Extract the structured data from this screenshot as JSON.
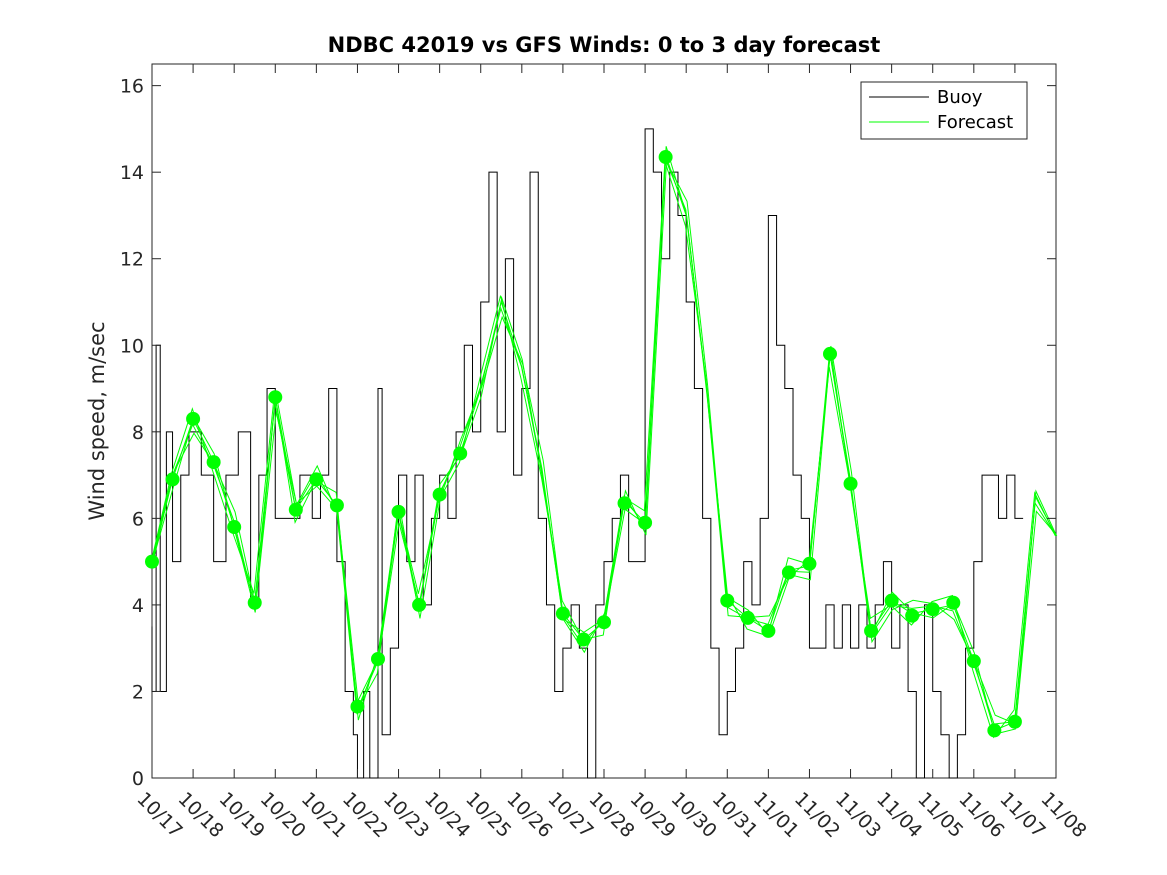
{
  "chart_data": {
    "type": "line",
    "title": "NDBC 42019 vs GFS Winds: 0 to 3 day forecast",
    "xlabel": "",
    "ylabel": "Wind speed, m/sec",
    "xlim": [
      0,
      22
    ],
    "ylim": [
      0,
      16.5
    ],
    "x_ticks": [
      "10/17",
      "10/18",
      "10/19",
      "10/20",
      "10/21",
      "10/22",
      "10/23",
      "10/24",
      "10/25",
      "10/26",
      "10/27",
      "10/28",
      "10/29",
      "10/30",
      "10/31",
      "11/01",
      "11/02",
      "11/03",
      "11/04",
      "11/05",
      "11/06",
      "11/07",
      "11/08"
    ],
    "y_ticks": [
      0,
      2,
      4,
      6,
      8,
      10,
      12,
      14,
      16
    ],
    "grid": false,
    "legend": {
      "position": "top-right",
      "entries": [
        "Buoy",
        "Forecast"
      ]
    },
    "series": [
      {
        "name": "Buoy",
        "color": "#000000",
        "points": [
          [
            0,
            3.5
          ],
          [
            0.1,
            2
          ],
          [
            0.2,
            10
          ],
          [
            0.35,
            2
          ],
          [
            0.5,
            8
          ],
          [
            0.7,
            5
          ],
          [
            0.9,
            7
          ],
          [
            1.2,
            8
          ],
          [
            1.5,
            7
          ],
          [
            1.8,
            5
          ],
          [
            2.1,
            7
          ],
          [
            2.4,
            8
          ],
          [
            2.6,
            4
          ],
          [
            2.8,
            7
          ],
          [
            3.0,
            9
          ],
          [
            3.3,
            6
          ],
          [
            3.6,
            6
          ],
          [
            3.9,
            7
          ],
          [
            4.1,
            6
          ],
          [
            4.3,
            7
          ],
          [
            4.5,
            9
          ],
          [
            4.7,
            5
          ],
          [
            4.9,
            2
          ],
          [
            5.0,
            1
          ],
          [
            5.15,
            0
          ],
          [
            5.3,
            2
          ],
          [
            5.5,
            0
          ],
          [
            5.6,
            9
          ],
          [
            5.8,
            1
          ],
          [
            6.0,
            3
          ],
          [
            6.2,
            7
          ],
          [
            6.4,
            5
          ],
          [
            6.6,
            7
          ],
          [
            6.8,
            4
          ],
          [
            7.0,
            6
          ],
          [
            7.2,
            7
          ],
          [
            7.4,
            6
          ],
          [
            7.6,
            8
          ],
          [
            7.8,
            10
          ],
          [
            8.0,
            8
          ],
          [
            8.2,
            11
          ],
          [
            8.4,
            14
          ],
          [
            8.6,
            8
          ],
          [
            8.8,
            12
          ],
          [
            9.0,
            7
          ],
          [
            9.2,
            9
          ],
          [
            9.4,
            14
          ],
          [
            9.6,
            6
          ],
          [
            9.8,
            4
          ],
          [
            10.0,
            2
          ],
          [
            10.2,
            3
          ],
          [
            10.4,
            4
          ],
          [
            10.6,
            3
          ],
          [
            10.8,
            0
          ],
          [
            11.0,
            4
          ],
          [
            11.2,
            5
          ],
          [
            11.4,
            6
          ],
          [
            11.6,
            7
          ],
          [
            11.8,
            5
          ],
          [
            12.0,
            5
          ],
          [
            12.2,
            15
          ],
          [
            12.4,
            14
          ],
          [
            12.6,
            12
          ],
          [
            12.8,
            14
          ],
          [
            13.0,
            13
          ],
          [
            13.2,
            11
          ],
          [
            13.4,
            9
          ],
          [
            13.6,
            6
          ],
          [
            13.8,
            3
          ],
          [
            14.0,
            1
          ],
          [
            14.2,
            2
          ],
          [
            14.4,
            3
          ],
          [
            14.6,
            5
          ],
          [
            14.8,
            4
          ],
          [
            15.0,
            6
          ],
          [
            15.2,
            13
          ],
          [
            15.4,
            10
          ],
          [
            15.6,
            9
          ],
          [
            15.8,
            7
          ],
          [
            16.0,
            6
          ],
          [
            16.2,
            3
          ],
          [
            16.4,
            3
          ],
          [
            16.6,
            4
          ],
          [
            16.8,
            3
          ],
          [
            17.0,
            4
          ],
          [
            17.2,
            3
          ],
          [
            17.4,
            4
          ],
          [
            17.6,
            3
          ],
          [
            17.8,
            4
          ],
          [
            18.0,
            5
          ],
          [
            18.2,
            3
          ],
          [
            18.4,
            4
          ],
          [
            18.6,
            2
          ],
          [
            18.8,
            0
          ],
          [
            19.0,
            4
          ],
          [
            19.2,
            2
          ],
          [
            19.4,
            1
          ],
          [
            19.6,
            0
          ],
          [
            19.8,
            1
          ],
          [
            20.0,
            3
          ],
          [
            20.2,
            5
          ],
          [
            20.4,
            7
          ],
          [
            20.6,
            7
          ],
          [
            20.8,
            6
          ],
          [
            21.0,
            7
          ],
          [
            21.2,
            6
          ]
        ]
      },
      {
        "name": "Forecast",
        "color": "#00ff00",
        "points": [
          [
            0,
            5.0
          ],
          [
            0.5,
            6.9
          ],
          [
            1.0,
            8.3
          ],
          [
            1.5,
            7.3
          ],
          [
            2.0,
            5.8
          ],
          [
            2.5,
            4.0
          ],
          [
            3.0,
            8.8
          ],
          [
            3.5,
            6.2
          ],
          [
            4.0,
            6.9
          ],
          [
            4.5,
            6.3
          ],
          [
            5.0,
            1.6
          ],
          [
            5.5,
            2.7
          ],
          [
            6.0,
            6.1
          ],
          [
            6.5,
            4.0
          ],
          [
            7.0,
            6.6
          ],
          [
            7.5,
            7.5
          ],
          [
            8.0,
            9.0
          ],
          [
            8.5,
            11.0
          ],
          [
            9.0,
            9.5
          ],
          [
            9.5,
            7.0
          ],
          [
            10.0,
            3.8
          ],
          [
            10.5,
            3.2
          ],
          [
            11.0,
            3.6
          ],
          [
            11.5,
            6.4
          ],
          [
            12.0,
            5.9
          ],
          [
            12.5,
            14.4
          ],
          [
            13.0,
            13.0
          ],
          [
            13.5,
            9.0
          ],
          [
            14.0,
            4.1
          ],
          [
            14.5,
            3.7
          ],
          [
            15.0,
            3.4
          ],
          [
            15.5,
            4.8
          ],
          [
            16.0,
            4.9
          ],
          [
            16.5,
            9.8
          ],
          [
            17.0,
            6.8
          ],
          [
            17.5,
            3.4
          ],
          [
            18.0,
            4.1
          ],
          [
            18.5,
            3.8
          ],
          [
            19.0,
            3.9
          ],
          [
            19.5,
            4.0
          ],
          [
            20.0,
            2.7
          ],
          [
            20.5,
            1.1
          ],
          [
            21.0,
            1.3
          ],
          [
            21.5,
            6.5
          ],
          [
            22.0,
            5.6
          ]
        ]
      }
    ],
    "markers": {
      "series": "Forecast",
      "points": [
        [
          0,
          5.0
        ],
        [
          0.5,
          6.9
        ],
        [
          1.0,
          8.3
        ],
        [
          1.5,
          7.3
        ],
        [
          2.0,
          5.8
        ],
        [
          2.5,
          4.05
        ],
        [
          3.0,
          8.8
        ],
        [
          3.5,
          6.2
        ],
        [
          4.0,
          6.9
        ],
        [
          4.5,
          6.3
        ],
        [
          5.0,
          1.65
        ],
        [
          5.5,
          2.75
        ],
        [
          6.0,
          6.15
        ],
        [
          6.5,
          4.0
        ],
        [
          7.0,
          6.55
        ],
        [
          7.5,
          7.5
        ],
        [
          10.0,
          3.8
        ],
        [
          10.5,
          3.2
        ],
        [
          11.0,
          3.6
        ],
        [
          11.5,
          6.35
        ],
        [
          12.0,
          5.9
        ],
        [
          12.5,
          14.35
        ],
        [
          14.0,
          4.1
        ],
        [
          14.5,
          3.7
        ],
        [
          15.0,
          3.4
        ],
        [
          15.5,
          4.75
        ],
        [
          16.0,
          4.95
        ],
        [
          16.5,
          9.8
        ],
        [
          17.0,
          6.8
        ],
        [
          17.5,
          3.4
        ],
        [
          18.0,
          4.1
        ],
        [
          18.5,
          3.75
        ],
        [
          19.0,
          3.9
        ],
        [
          19.5,
          4.05
        ],
        [
          20.0,
          2.7
        ],
        [
          20.5,
          1.1
        ],
        [
          21.0,
          1.3
        ]
      ]
    }
  }
}
